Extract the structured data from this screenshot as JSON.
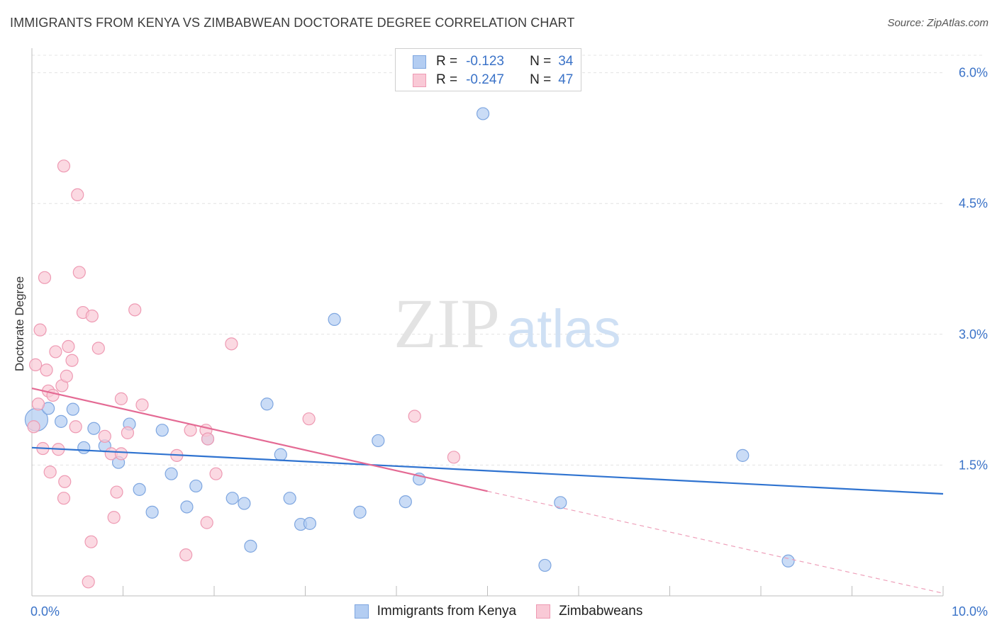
{
  "header": {
    "title": "IMMIGRANTS FROM KENYA VS ZIMBABWEAN DOCTORATE DEGREE CORRELATION CHART",
    "source": "Source: ZipAtlas.com"
  },
  "watermark": {
    "zip": "ZIP",
    "atlas": "atlas"
  },
  "legend": {
    "rows": [
      {
        "r_label": "R =",
        "r_value": "-0.123",
        "n_label": "N =",
        "n_value": "34",
        "color": "#b3cdf2",
        "border": "#7ea6e0"
      },
      {
        "r_label": "R =",
        "r_value": "-0.247",
        "n_label": "N =",
        "n_value": "47",
        "color": "#f9c9d6",
        "border": "#ee9ab3"
      }
    ]
  },
  "bottom_legend": [
    {
      "label": "Immigrants from Kenya",
      "color": "#b3cdf2",
      "border": "#7ea6e0"
    },
    {
      "label": "Zimbabweans",
      "color": "#f9c9d6",
      "border": "#ee9ab3"
    }
  ],
  "chart_data": {
    "type": "scatter",
    "title": "IMMIGRANTS FROM KENYA VS ZIMBABWEAN DOCTORATE DEGREE CORRELATION CHART",
    "xlabel": "",
    "ylabel": "Doctorate Degree",
    "xlim": [
      0,
      10
    ],
    "ylim": [
      0,
      6.2
    ],
    "x_tick_labels": [
      "0.0%",
      "10.0%"
    ],
    "y_ticks": [
      1.5,
      3.0,
      4.5,
      6.0
    ],
    "y_tick_labels": [
      "1.5%",
      "3.0%",
      "4.5%",
      "6.0%"
    ],
    "grid": "horizontal dashed",
    "legend_position": "top-center",
    "series": [
      {
        "name": "Immigrants from Kenya",
        "color": "#7ea6e0",
        "fill": "#b3cdf2",
        "points": [
          [
            0.05,
            2.02
          ],
          [
            0.18,
            2.15
          ],
          [
            0.32,
            2.0
          ],
          [
            0.45,
            2.14
          ],
          [
            0.57,
            1.7
          ],
          [
            0.68,
            1.92
          ],
          [
            0.8,
            1.72
          ],
          [
            0.95,
            1.53
          ],
          [
            1.07,
            1.97
          ],
          [
            1.18,
            1.22
          ],
          [
            1.32,
            0.96
          ],
          [
            1.43,
            1.9
          ],
          [
            1.53,
            1.4
          ],
          [
            1.7,
            1.02
          ],
          [
            1.8,
            1.26
          ],
          [
            1.93,
            1.8
          ],
          [
            2.2,
            1.12
          ],
          [
            2.33,
            1.06
          ],
          [
            2.4,
            0.57
          ],
          [
            2.58,
            2.2
          ],
          [
            2.73,
            1.62
          ],
          [
            2.83,
            1.12
          ],
          [
            2.95,
            0.82
          ],
          [
            3.05,
            0.83
          ],
          [
            3.32,
            3.17
          ],
          [
            3.6,
            0.96
          ],
          [
            3.8,
            1.78
          ],
          [
            4.1,
            1.08
          ],
          [
            4.25,
            1.34
          ],
          [
            4.95,
            5.53
          ],
          [
            5.63,
            0.35
          ],
          [
            5.8,
            1.07
          ],
          [
            7.8,
            1.61
          ],
          [
            8.3,
            0.4
          ]
        ],
        "trend": {
          "x": [
            0,
            10
          ],
          "y": [
            1.7,
            1.17
          ]
        }
      },
      {
        "name": "Zimbabweans",
        "color": "#ee9ab3",
        "fill": "#f9c9d6",
        "points": [
          [
            0.02,
            1.94
          ],
          [
            0.04,
            2.65
          ],
          [
            0.07,
            2.2
          ],
          [
            0.09,
            3.05
          ],
          [
            0.12,
            1.69
          ],
          [
            0.14,
            3.65
          ],
          [
            0.16,
            2.59
          ],
          [
            0.18,
            2.35
          ],
          [
            0.2,
            1.42
          ],
          [
            0.23,
            2.3
          ],
          [
            0.26,
            2.8
          ],
          [
            0.29,
            1.68
          ],
          [
            0.33,
            2.41
          ],
          [
            0.35,
            1.12
          ],
          [
            0.36,
            1.31
          ],
          [
            0.38,
            2.52
          ],
          [
            0.4,
            2.86
          ],
          [
            0.44,
            2.7
          ],
          [
            0.48,
            1.94
          ],
          [
            0.5,
            4.6
          ],
          [
            0.52,
            3.71
          ],
          [
            0.35,
            4.93
          ],
          [
            0.56,
            3.25
          ],
          [
            0.62,
            0.16
          ],
          [
            0.66,
            3.21
          ],
          [
            0.65,
            0.62
          ],
          [
            0.73,
            2.84
          ],
          [
            0.8,
            1.83
          ],
          [
            0.87,
            1.63
          ],
          [
            0.9,
            0.9
          ],
          [
            0.93,
            1.19
          ],
          [
            0.98,
            1.63
          ],
          [
            0.98,
            2.26
          ],
          [
            1.05,
            1.87
          ],
          [
            1.13,
            3.28
          ],
          [
            1.21,
            2.19
          ],
          [
            1.59,
            1.61
          ],
          [
            1.69,
            0.47
          ],
          [
            1.74,
            1.9
          ],
          [
            1.91,
            1.9
          ],
          [
            1.92,
            0.84
          ],
          [
            1.93,
            1.8
          ],
          [
            2.02,
            1.4
          ],
          [
            2.19,
            2.89
          ],
          [
            3.04,
            2.03
          ],
          [
            4.2,
            2.06
          ],
          [
            4.63,
            1.59
          ]
        ],
        "trend": {
          "x": [
            0,
            5.0
          ],
          "y": [
            2.38,
            1.2
          ]
        },
        "trend_dashed": {
          "x": [
            5.0,
            10
          ],
          "y": [
            1.2,
            0.03
          ]
        }
      }
    ]
  }
}
